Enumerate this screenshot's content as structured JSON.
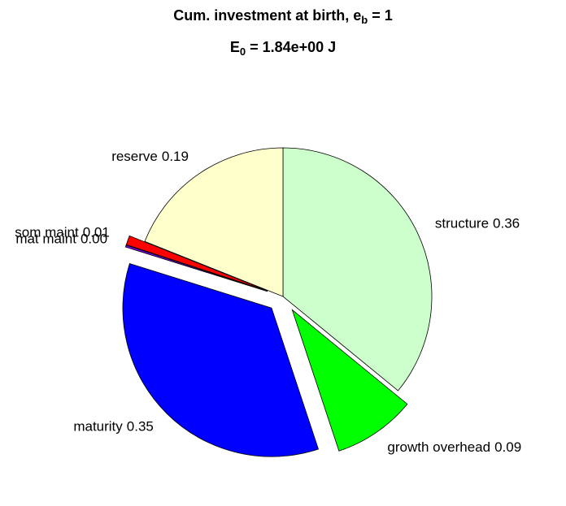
{
  "chart_data": {
    "type": "pie",
    "title": {
      "text": "Cum. investment at birth, e",
      "sub": "b",
      "after": " = 1"
    },
    "subtitle": {
      "text": "E",
      "sub": "0",
      "after": " = 1.84e+00 J"
    },
    "categories": [
      "structure",
      "growth overhead",
      "maturity",
      "mat maint",
      "som maint",
      "reserve"
    ],
    "values": [
      0.36,
      0.09,
      0.35,
      0.002,
      0.01,
      0.19
    ],
    "value_labels": [
      "0.36",
      "0.09",
      "0.35",
      "0.00",
      "0.01",
      "0.19"
    ],
    "colors": [
      "#ccffcc",
      "#00ff00",
      "#0000ff",
      "#8000ff",
      "#ff0000",
      "#ffffcc"
    ],
    "explode": [
      0,
      1,
      1,
      1,
      1,
      0
    ]
  }
}
